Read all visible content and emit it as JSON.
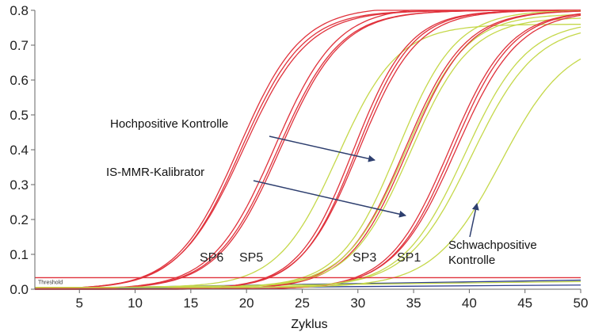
{
  "chart_data": {
    "type": "line",
    "title": "",
    "xlabel": "Zyklus",
    "ylabel": "",
    "xlim": [
      1,
      50
    ],
    "ylim": [
      0.0,
      0.8
    ],
    "x_ticks": [
      5,
      10,
      15,
      20,
      25,
      30,
      35,
      40,
      45,
      50
    ],
    "y_ticks": [
      0.0,
      0.1,
      0.2,
      0.3,
      0.4,
      0.5,
      0.6,
      0.7,
      0.8
    ],
    "x_tick_labels": [
      "5",
      "10",
      "15",
      "20",
      "25",
      "30",
      "35",
      "40",
      "45",
      "50"
    ],
    "y_tick_labels": [
      "0.0",
      "0.1",
      "0.2",
      "0.3",
      "0.4",
      "0.5",
      "0.6",
      "0.7",
      "0.8"
    ],
    "grid": false,
    "threshold": {
      "label": "Threshold",
      "value": 0.033,
      "color": "#e0323c"
    },
    "colors": {
      "red": "#e0323c",
      "green": "#c5d84a",
      "blue": "#2e3f8f",
      "axis": "#666666"
    },
    "series": [
      {
        "color": "red",
        "midpoint": 19.3,
        "slope": 2.8,
        "plateau": 0.81,
        "baseline": 0.0
      },
      {
        "color": "red",
        "midpoint": 19.5,
        "slope": 2.8,
        "plateau": 0.8,
        "baseline": 0.0
      },
      {
        "color": "red",
        "midpoint": 19.7,
        "slope": 2.9,
        "plateau": 0.8,
        "baseline": 0.0
      },
      {
        "color": "red",
        "midpoint": 22.5,
        "slope": 2.8,
        "plateau": 0.81,
        "baseline": 0.0
      },
      {
        "color": "red",
        "midpoint": 22.8,
        "slope": 2.8,
        "plateau": 0.8,
        "baseline": 0.0
      },
      {
        "color": "red",
        "midpoint": 23.0,
        "slope": 2.8,
        "plateau": 0.8,
        "baseline": 0.0
      },
      {
        "color": "green",
        "midpoint": 28.2,
        "slope": 2.7,
        "plateau": 0.76,
        "baseline": 0.005
      },
      {
        "color": "red",
        "midpoint": 29.6,
        "slope": 2.5,
        "plateau": 0.8,
        "baseline": 0.0
      },
      {
        "color": "red",
        "midpoint": 29.9,
        "slope": 2.5,
        "plateau": 0.8,
        "baseline": 0.0
      },
      {
        "color": "red",
        "midpoint": 30.1,
        "slope": 2.6,
        "plateau": 0.8,
        "baseline": 0.0
      },
      {
        "color": "green",
        "midpoint": 33.6,
        "slope": 2.6,
        "plateau": 0.8,
        "baseline": 0.005
      },
      {
        "color": "red",
        "midpoint": 34.2,
        "slope": 2.7,
        "plateau": 0.8,
        "baseline": 0.0
      },
      {
        "color": "green",
        "midpoint": 34.3,
        "slope": 2.7,
        "plateau": 0.79,
        "baseline": 0.005
      },
      {
        "color": "red",
        "midpoint": 34.5,
        "slope": 2.7,
        "plateau": 0.8,
        "baseline": 0.0
      },
      {
        "color": "green",
        "midpoint": 34.7,
        "slope": 2.7,
        "plateau": 0.78,
        "baseline": 0.005
      },
      {
        "color": "red",
        "midpoint": 38.2,
        "slope": 2.7,
        "plateau": 0.8,
        "baseline": 0.0
      },
      {
        "color": "red",
        "midpoint": 38.5,
        "slope": 2.7,
        "plateau": 0.8,
        "baseline": 0.0
      },
      {
        "color": "red",
        "midpoint": 38.8,
        "slope": 2.8,
        "plateau": 0.8,
        "baseline": 0.0
      },
      {
        "color": "green",
        "midpoint": 39.6,
        "slope": 2.8,
        "plateau": 0.77,
        "baseline": 0.005
      },
      {
        "color": "green",
        "midpoint": 40.2,
        "slope": 2.9,
        "plateau": 0.76,
        "baseline": 0.005
      },
      {
        "color": "green",
        "midpoint": 42.8,
        "slope": 3.0,
        "plateau": 0.72,
        "baseline": 0.005
      }
    ],
    "baseline_lines": [
      {
        "color": "blue",
        "x": [
          1,
          50
        ],
        "y": [
          0.002,
          0.026
        ]
      },
      {
        "color": "green",
        "x": [
          1,
          50
        ],
        "y": [
          0.003,
          0.022
        ]
      },
      {
        "color": "blue",
        "x": [
          1,
          50
        ],
        "y": [
          0.001,
          0.012
        ]
      }
    ],
    "curve_labels": [
      "SP6",
      "SP5",
      "SP3",
      "SP1"
    ],
    "annotations": [
      {
        "text": "Hochpositive Kontrolle"
      },
      {
        "text": "IS-MMR-Kalibrator"
      },
      {
        "text": "Schwachpositive",
        "text2": "Kontrolle"
      }
    ]
  }
}
